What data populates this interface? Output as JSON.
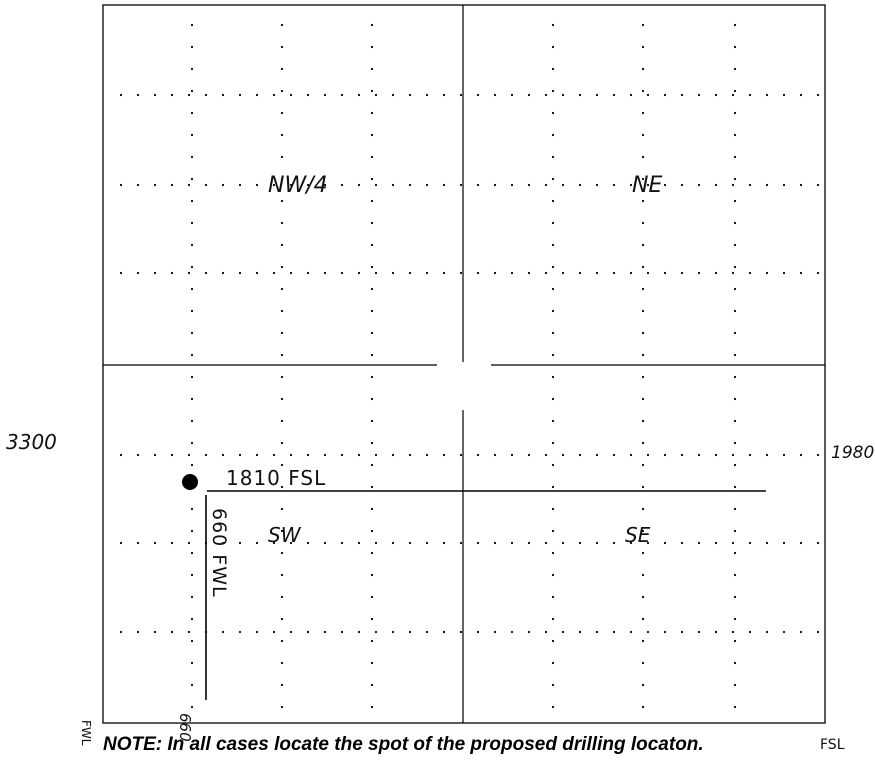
{
  "quadrants": {
    "nw": "NW/4",
    "ne": "NE",
    "sw": "SW",
    "se": "SE"
  },
  "margin_labels": {
    "left_distance": "3300",
    "right_distance": "1980",
    "bottom_left_vertical": "FWL",
    "bottom_left_number": "660",
    "bottom_right": "FSL"
  },
  "well_location": {
    "fsl_label": "1810 FSL",
    "fwl_label": "660 FWL"
  },
  "note": "NOTE: In all cases locate the spot of the proposed drilling locaton."
}
